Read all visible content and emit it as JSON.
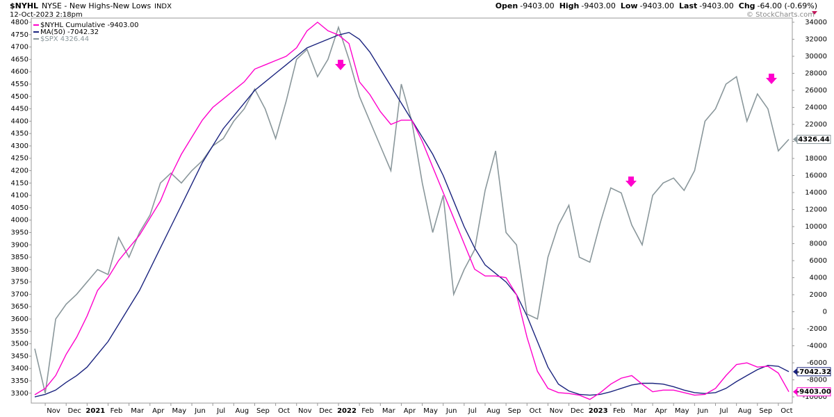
{
  "header": {
    "symbol": "$NYHL",
    "name": "NYSE - New Highs-New Lows",
    "exchange": "INDX",
    "date": "12-Oct-2023 2:18pm",
    "quote": [
      {
        "label": "Open",
        "value": "-9403.00"
      },
      {
        "label": "High",
        "value": "-9403.00"
      },
      {
        "label": "Low",
        "value": "-9403.00"
      },
      {
        "label": "Last",
        "value": "-9403.00"
      },
      {
        "label": "Chg",
        "value": "-64.00 (-0.69%)"
      }
    ],
    "credit": "© StockCharts.com"
  },
  "chart_data": {
    "type": "line",
    "categories": [
      null,
      "Nov",
      null,
      "Dec",
      null,
      "2021",
      null,
      "Feb",
      null,
      "Mar",
      null,
      "Apr",
      null,
      "May",
      null,
      "Jun",
      null,
      "Jul",
      null,
      "Aug",
      null,
      "Sep",
      null,
      "Oct",
      null,
      "Nov",
      null,
      "Dec",
      null,
      "2022",
      null,
      "Feb",
      null,
      "Mar",
      null,
      "Apr",
      null,
      "May",
      null,
      "Jun",
      null,
      "Jul",
      null,
      "Aug",
      null,
      "Sep",
      null,
      "Oct",
      null,
      "Nov",
      null,
      "Dec",
      null,
      "2023",
      null,
      "Feb",
      null,
      "Mar",
      null,
      "Apr",
      null,
      "May",
      null,
      "Jun",
      null,
      "Jul",
      null,
      "Aug",
      null,
      "Sep",
      null,
      "Oct",
      null
    ],
    "series": [
      {
        "name": "$NYHL Cumulative -9403.00",
        "color": "#ff00cc",
        "axis": "y2",
        "last_label": "-9403.00",
        "values": [
          -9750,
          -9000,
          -7500,
          -5000,
          -3000,
          -500,
          2500,
          4000,
          6000,
          7500,
          9000,
          11000,
          13000,
          16000,
          18500,
          20500,
          22500,
          24000,
          25000,
          26000,
          27000,
          28500,
          29000,
          29500,
          30000,
          31000,
          33000,
          34000,
          33000,
          32500,
          31500,
          27000,
          25500,
          23500,
          22000,
          22500,
          22500,
          20000,
          17000,
          14000,
          11000,
          8000,
          5000,
          4200,
          4200,
          4000,
          2000,
          -3000,
          -7000,
          -9000,
          -9500,
          -9600,
          -9800,
          -10300,
          -9500,
          -8500,
          -7800,
          -7500,
          -8500,
          -9400,
          -9200,
          -9200,
          -9500,
          -9800,
          -9700,
          -9000,
          -7500,
          -6200,
          -6000,
          -6500,
          -6400,
          -7200,
          -9403
        ]
      },
      {
        "name": "MA(50) -7042.32",
        "color": "#1a237e",
        "axis": "y2",
        "last_label": "-7042.32",
        "values": [
          -10000,
          -9700,
          -9200,
          -8300,
          -7500,
          -6500,
          -5000,
          -3500,
          -1500,
          500,
          2500,
          5000,
          7500,
          10000,
          12500,
          15000,
          17500,
          19500,
          21500,
          23000,
          24500,
          26000,
          27000,
          28000,
          29000,
          30000,
          31000,
          31500,
          32000,
          32500,
          32800,
          32000,
          30500,
          28500,
          26500,
          24500,
          22500,
          20500,
          18500,
          16000,
          13000,
          10000,
          7500,
          5500,
          4500,
          3500,
          2000,
          -500,
          -3500,
          -6500,
          -8500,
          -9300,
          -9700,
          -9800,
          -9700,
          -9400,
          -9000,
          -8600,
          -8400,
          -8400,
          -8500,
          -8800,
          -9200,
          -9500,
          -9600,
          -9500,
          -9000,
          -8200,
          -7500,
          -6800,
          -6300,
          -6400,
          -7042.32
        ]
      },
      {
        "name": "$SPX 4326.44",
        "color": "#8a979b",
        "axis": "y",
        "last_label": "4326.44",
        "values": [
          3480,
          3300,
          3600,
          3660,
          3700,
          3750,
          3800,
          3780,
          3930,
          3850,
          3950,
          4020,
          4150,
          4190,
          4150,
          4200,
          4240,
          4300,
          4330,
          4400,
          4450,
          4530,
          4450,
          4330,
          4480,
          4650,
          4690,
          4580,
          4650,
          4780,
          4650,
          4500,
          4400,
          4300,
          4200,
          4550,
          4400,
          4150,
          3950,
          4100,
          3700,
          3800,
          3880,
          4120,
          4280,
          3950,
          3900,
          3620,
          3600,
          3850,
          3980,
          4060,
          3850,
          3830,
          3990,
          4130,
          4110,
          3980,
          3900,
          4100,
          4150,
          4170,
          4120,
          4200,
          4400,
          4450,
          4550,
          4580,
          4400,
          4510,
          4450,
          4280,
          4326.44
        ]
      }
    ],
    "ylim": [
      3260,
      4817
    ],
    "yticks": [
      3300,
      3350,
      3400,
      3450,
      3500,
      3550,
      3600,
      3650,
      3700,
      3750,
      3800,
      3850,
      3900,
      3950,
      4000,
      4050,
      4100,
      4150,
      4200,
      4250,
      4300,
      4350,
      4400,
      4450,
      4500,
      4550,
      4600,
      4650,
      4700,
      4750,
      4800
    ],
    "y2lim": [
      -10730,
      34490
    ],
    "y2ticks": [
      -10000,
      -8000,
      -6000,
      -4000,
      -2000,
      0,
      2000,
      4000,
      6000,
      8000,
      10000,
      12000,
      14000,
      16000,
      18000,
      20000,
      22000,
      24000,
      26000,
      28000,
      30000,
      32000,
      34000
    ],
    "grid": false
  }
}
